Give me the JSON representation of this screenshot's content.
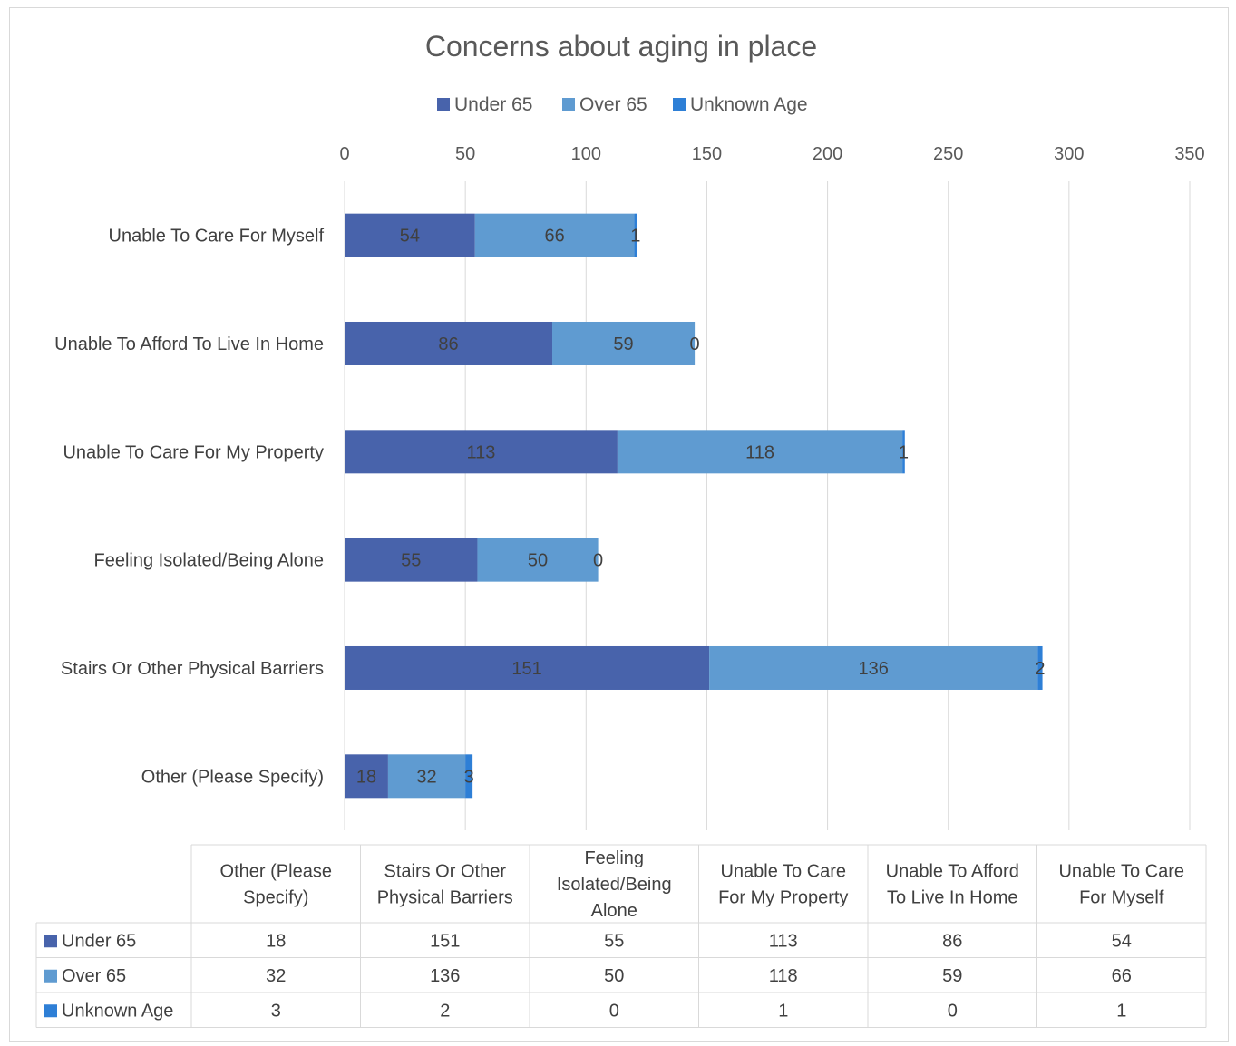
{
  "chart_data": {
    "type": "bar",
    "orientation": "horizontal",
    "stacked": true,
    "title": "Concerns about aging in place",
    "categories": [
      "Unable To Care For Myself",
      "Unable To Afford To Live In Home",
      "Unable To Care For My Property",
      "Feeling Isolated/Being Alone",
      "Stairs Or Other Physical Barriers",
      "Other (Please Specify)"
    ],
    "series": [
      {
        "name": "Under 65",
        "color": "#4863ab",
        "values": [
          54,
          86,
          113,
          55,
          151,
          18
        ]
      },
      {
        "name": "Over 65",
        "color": "#5f9bd1",
        "values": [
          66,
          59,
          118,
          50,
          136,
          32
        ]
      },
      {
        "name": "Unknown Age",
        "color": "#2e7fd6",
        "values": [
          1,
          0,
          1,
          0,
          2,
          3
        ]
      }
    ],
    "xlim": [
      0,
      350
    ],
    "xticks": [
      0,
      50,
      100,
      150,
      200,
      250,
      300,
      350
    ],
    "x_axis_position": "top",
    "grid": true,
    "legend": "top-center",
    "data_labels": true,
    "data_table": {
      "columns": [
        "Other (Please Specify)",
        "Stairs Or Other Physical Barriers",
        "Feeling Isolated/Being Alone",
        "Unable To Care For My Property",
        "Unable To Afford To Live In Home",
        "Unable To Care For Myself"
      ],
      "headers": [
        [
          "Other (Please",
          "Specify)"
        ],
        [
          "Stairs Or Other",
          "Physical Barriers"
        ],
        [
          "Feeling",
          "Isolated/Being",
          "Alone"
        ],
        [
          "Unable To Care",
          "For My Property"
        ],
        [
          "Unable To Afford",
          "To Live In Home"
        ],
        [
          "Unable To Care",
          "For Myself"
        ]
      ],
      "rows": [
        {
          "name": "Under 65",
          "values": [
            18,
            151,
            55,
            113,
            86,
            54
          ]
        },
        {
          "name": "Over 65",
          "values": [
            32,
            136,
            50,
            118,
            59,
            66
          ]
        },
        {
          "name": "Unknown Age",
          "values": [
            3,
            2,
            0,
            1,
            0,
            1
          ]
        }
      ]
    }
  }
}
